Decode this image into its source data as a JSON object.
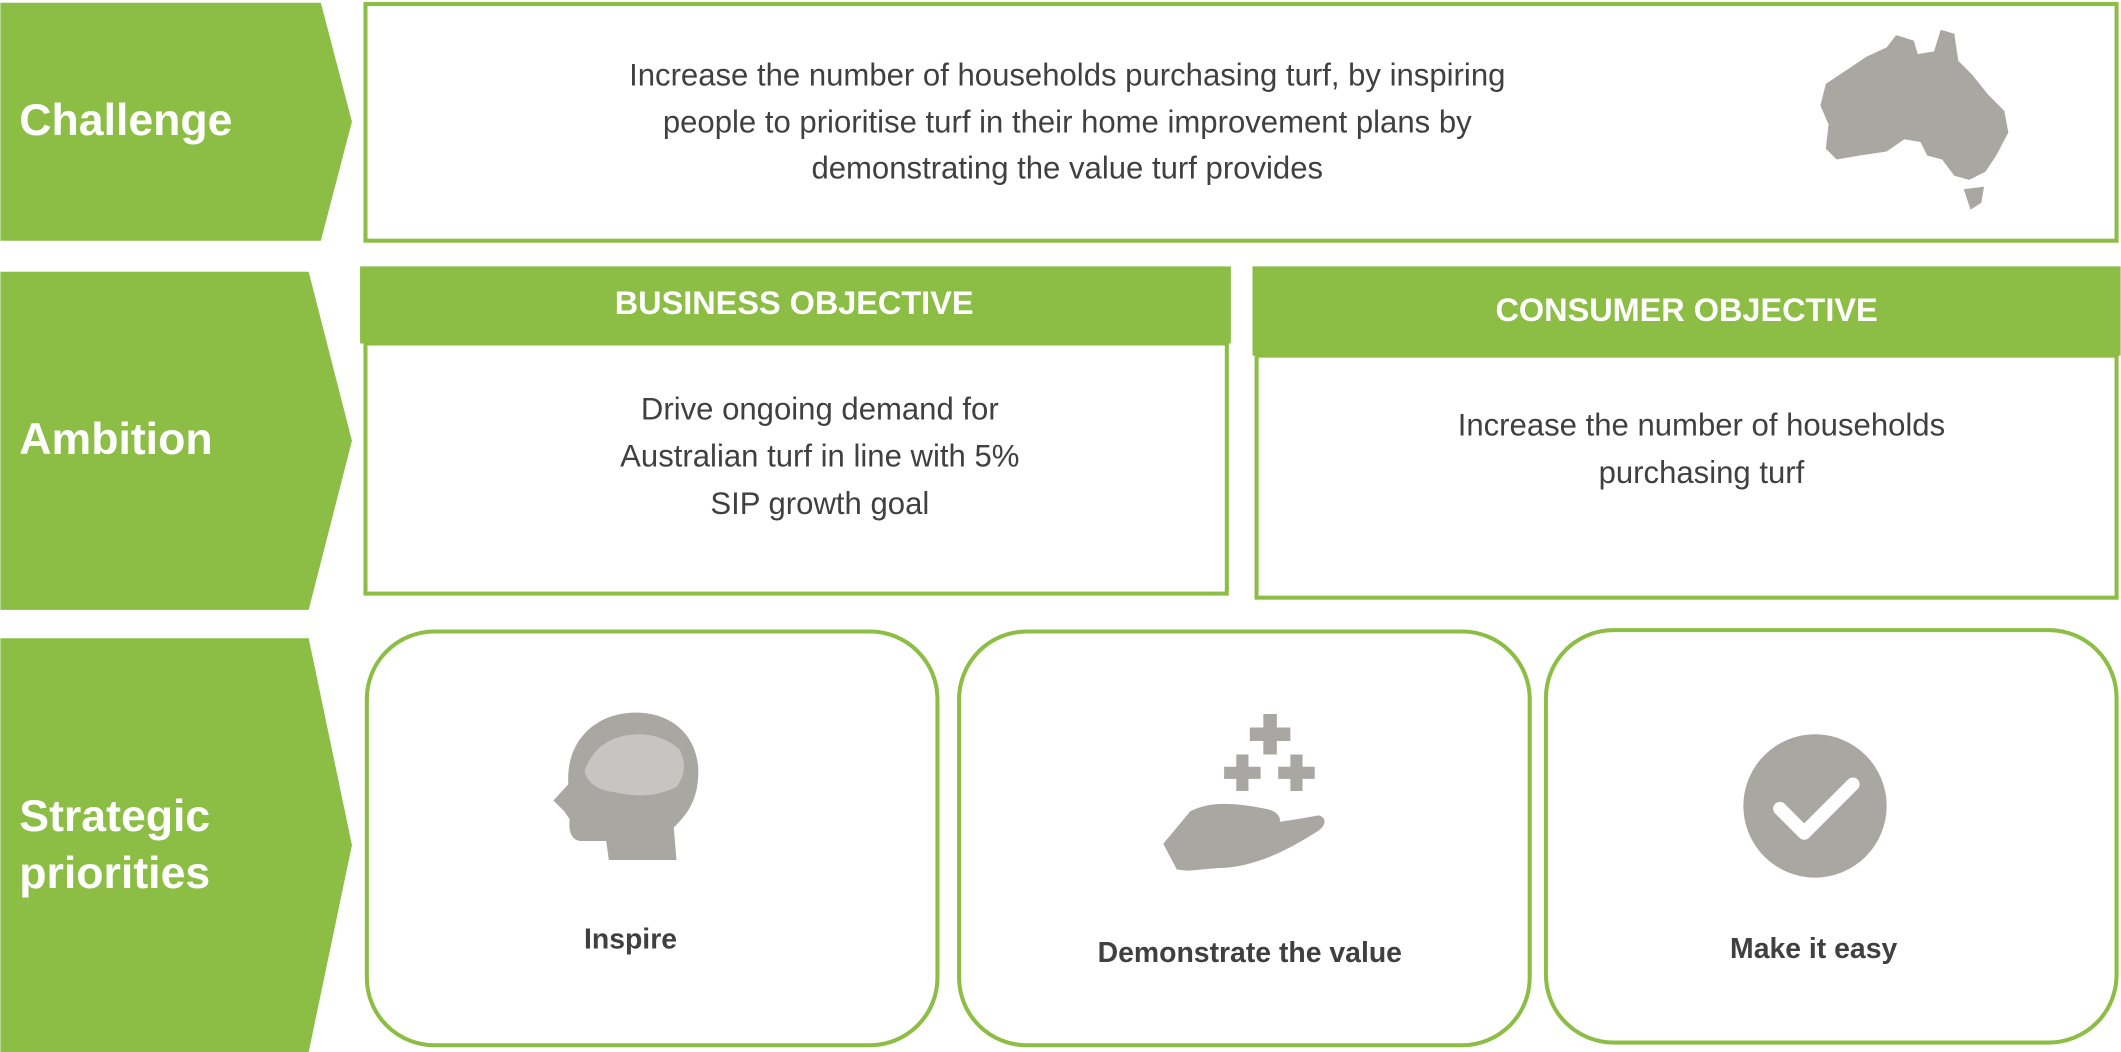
{
  "challenge": {
    "label": "Challenge",
    "lines": [
      "Increase the number of households purchasing turf, by inspiring",
      "people to prioritise turf in their home improvement plans by",
      "demonstrating the value turf provides"
    ]
  },
  "ambition": {
    "label": "Ambition",
    "business": {
      "title": "BUSINESS OBJECTIVE",
      "lines": [
        "Drive ongoing demand for",
        "Australian turf in line with 5%",
        "SIP growth goal"
      ]
    },
    "consumer": {
      "title": "CONSUMER OBJECTIVE",
      "lines": [
        "Increase the number of households",
        "purchasing turf"
      ]
    }
  },
  "priorities": {
    "label": [
      "Strategic",
      "priorities"
    ],
    "items": [
      "Inspire",
      "Demonstrate the value",
      "Make it easy"
    ]
  }
}
